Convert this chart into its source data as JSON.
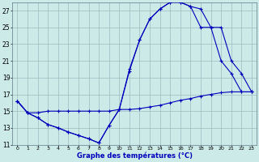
{
  "title": "Graphe des températures (°C)",
  "background_color": "#cceae8",
  "grid_color": "#9abcc0",
  "line_color": "#0000bb",
  "xlim": [
    0,
    23
  ],
  "ylim": [
    11,
    28
  ],
  "xticks": [
    0,
    1,
    2,
    3,
    4,
    5,
    6,
    7,
    8,
    9,
    10,
    11,
    12,
    13,
    14,
    15,
    16,
    17,
    18,
    19,
    20,
    21,
    22,
    23
  ],
  "yticks": [
    11,
    13,
    15,
    17,
    19,
    21,
    23,
    25,
    27
  ],
  "line1_x": [
    0,
    1,
    2,
    3,
    4,
    5,
    6,
    7,
    8,
    9,
    10,
    11,
    12,
    13,
    14,
    15,
    16,
    17,
    18,
    19,
    20,
    21,
    22,
    23
  ],
  "line1_y": [
    16.2,
    14.8,
    14.2,
    13.4,
    13.0,
    12.5,
    12.1,
    11.7,
    11.2,
    13.3,
    15.2,
    19.8,
    23.5,
    26.0,
    27.2,
    28.0,
    28.0,
    27.5,
    27.2,
    25.0,
    21.0,
    19.5,
    17.3,
    17.3
  ],
  "line2_x": [
    0,
    1,
    2,
    3,
    4,
    5,
    6,
    7,
    8,
    9,
    10,
    11,
    12,
    13,
    14,
    15,
    16,
    17,
    18,
    19,
    20,
    21,
    22,
    23
  ],
  "line2_y": [
    16.2,
    14.8,
    14.8,
    15.0,
    15.0,
    15.0,
    15.0,
    15.0,
    15.0,
    15.0,
    15.2,
    15.2,
    15.3,
    15.5,
    15.7,
    16.0,
    16.3,
    16.5,
    16.8,
    17.0,
    17.2,
    17.3,
    17.3,
    17.3
  ],
  "line3_x": [
    0,
    1,
    2,
    3,
    4,
    5,
    6,
    7,
    8,
    9,
    10,
    11,
    12,
    13,
    14,
    15,
    16,
    17,
    18,
    19,
    20,
    21,
    22,
    23
  ],
  "line3_y": [
    16.2,
    14.8,
    14.2,
    13.4,
    13.0,
    12.5,
    12.1,
    11.7,
    11.2,
    13.3,
    15.2,
    20.0,
    23.5,
    26.0,
    27.2,
    28.0,
    28.0,
    27.5,
    25.0,
    25.0,
    25.0,
    21.0,
    19.5,
    17.3
  ]
}
